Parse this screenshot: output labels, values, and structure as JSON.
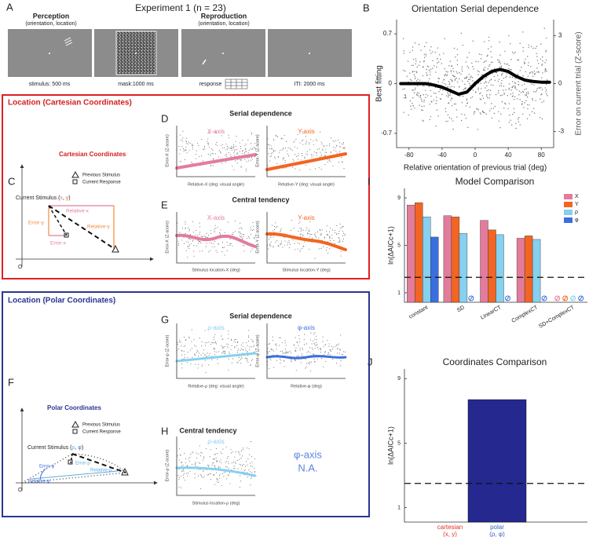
{
  "panel_a": {
    "label": "A",
    "title": "Experiment 1 (n = 23)",
    "perception": "Perception",
    "perception_sub": "(orientation, location)",
    "reproduction": "Reproduction",
    "reproduction_sub": "(orientation, location)",
    "captions": [
      "stimulus: 500 ms",
      "mask:1000 ms",
      "response",
      "ITI: 2000 ms"
    ]
  },
  "cartesian": {
    "box_title": "Location (Cartesian Coordinates)",
    "label_c": "C",
    "label_d": "D",
    "label_e": "E",
    "diagram": {
      "title": "Cartesian Coordinates",
      "legend": [
        "Previous Stimulus",
        "Current Response"
      ],
      "stimulus": [
        "Current Stimulus (",
        "x",
        ", ",
        "y",
        ")"
      ],
      "relative_x": "Relative-x",
      "relative_y": "Relative-y",
      "error_x": "Error-x",
      "error_y": "Error-y",
      "origin": "O"
    },
    "serial_title": "Serial dependence",
    "central_title": "Central tendency",
    "plots": [
      {
        "title": "X-axis",
        "xlabel": "Relative-X (deg: visual angle)",
        "ylabel": "Error-X (Z-score)"
      },
      {
        "title": "Y-axis",
        "xlabel": "Relative-Y (deg: visual angle)",
        "ylabel": "Error-Y (Z-score)"
      },
      {
        "title": "X-axis",
        "xlabel": "Stimulus location-X (deg)",
        "ylabel": "Error-X (Z-score)"
      },
      {
        "title": "Y-axis",
        "xlabel": "Stimulus location-Y (deg)",
        "ylabel": "Error-Y (Z-score)"
      }
    ]
  },
  "polar": {
    "box_title": "Location (Polar Coordinates)",
    "label_f": "F",
    "label_g": "G",
    "label_h": "H",
    "diagram": {
      "title": "Polar Coordinates",
      "legend": [
        "Previous Stimulus",
        "Current Response"
      ],
      "stimulus": [
        "Current Stimulus (",
        "ρ",
        ", ",
        "φ",
        ")"
      ],
      "error_phi": "Error-φ",
      "error_rho": "Error-ρ",
      "relative_phi": "Relative-φ",
      "relative_rho": "Relative-ρ",
      "origin": "O"
    },
    "serial_title": "Serial dependence",
    "central_title": "Central tendency",
    "plots": [
      {
        "title": "ρ-axis",
        "xlabel": "Relative-ρ (deg: visual angle)",
        "ylabel": "Error-ρ (Z-score)"
      },
      {
        "title": "φ-axis",
        "xlabel": "Relative-φ (deg)",
        "ylabel": "Error-φ (Z-score)"
      },
      {
        "title": "ρ-axis",
        "xlabel": "Stimulus location-ρ (deg)",
        "ylabel": "Error-ρ (Z-score)"
      }
    ],
    "na_text": [
      "φ-axis",
      "N.A."
    ]
  },
  "chart_data": [
    {
      "type": "line",
      "label": "B",
      "title": "Orientation Serial dependence",
      "xlabel": "Relative orientation of previous trial (deg)",
      "ylabel": "Best fitting",
      "y2label": "Error on current trial (Z-score)",
      "x": [
        -90,
        -80,
        -70,
        -60,
        -50,
        -40,
        -30,
        -20,
        -10,
        0,
        10,
        20,
        30,
        40,
        50,
        60,
        70,
        80,
        90
      ],
      "series": [
        {
          "color": "#000000",
          "values": [
            0,
            0,
            0,
            0,
            -0.02,
            -0.05,
            -0.1,
            -0.15,
            -0.12,
            0,
            0.1,
            0.17,
            0.2,
            0.17,
            0.1,
            0.05,
            0.03,
            0.02,
            0.02
          ]
        }
      ],
      "xlim": [
        -95,
        95
      ],
      "xticks": [
        -80,
        -40,
        0,
        40,
        80
      ],
      "ylim": [
        -0.9,
        0.9
      ],
      "yticks": [
        0.7,
        0,
        -0.7
      ],
      "y2lim": [
        -4,
        4
      ],
      "y2ticks": [
        3,
        0,
        -3
      ]
    },
    {
      "type": "bar",
      "label": "I",
      "title": "Model Comparison",
      "ylabel": "ln(ΔAICc+1)",
      "categories": [
        "constant",
        "SD",
        "LinearCT",
        "ComplexCT",
        "SD+ComplexCT"
      ],
      "series": [
        {
          "name": "X",
          "color": "#e37c9c",
          "values": [
            8.4,
            7.5,
            7.1,
            5.6,
            null
          ]
        },
        {
          "name": "Y",
          "color": "#f26522",
          "values": [
            8.6,
            7.4,
            6.3,
            5.8,
            null
          ]
        },
        {
          "name": "ρ",
          "color": "#86d0f0",
          "values": [
            7.4,
            6.0,
            5.9,
            5.5,
            null
          ]
        },
        {
          "name": "φ",
          "color": "#3b6fe0",
          "values": [
            5.7,
            null,
            null,
            null,
            null
          ]
        }
      ],
      "ylim": [
        0.2,
        9.8
      ],
      "yticks": [
        1,
        5,
        9
      ],
      "reference_line": 2.3,
      "legend": "top-right"
    },
    {
      "type": "bar",
      "label": "J",
      "title": "Coordinates Comparison",
      "ylabel": "ln(ΔAICc+1)",
      "categories": [
        "cartesian",
        "polar"
      ],
      "category_sublabels": [
        "(x, y)",
        "(ρ, φ)"
      ],
      "category_colors": [
        "#e0312b",
        "#3a5fc8"
      ],
      "values": [
        null,
        7.7
      ],
      "color": "#24288f",
      "ylim": [
        0.1,
        9.6
      ],
      "yticks": [
        1,
        5,
        9
      ],
      "reference_line": 2.5
    }
  ]
}
